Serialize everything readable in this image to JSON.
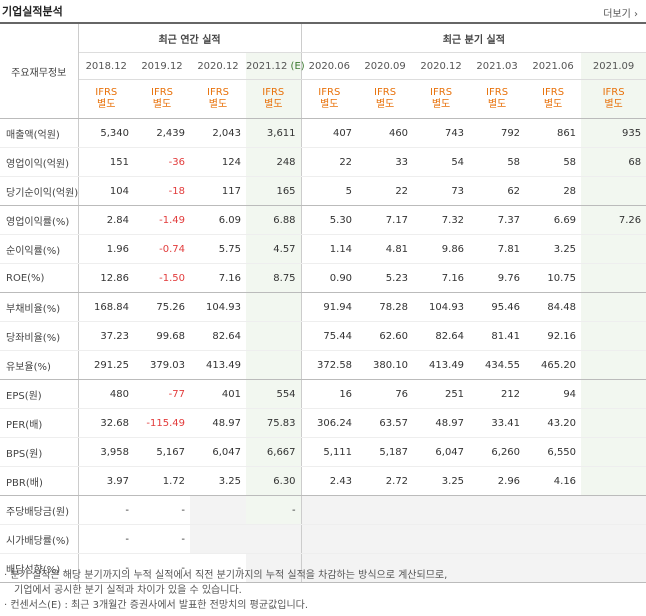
{
  "title": "기업실적분석",
  "more": "더보기",
  "header": {
    "corner": "주요재무정보",
    "annual_group": "최근 연간 실적",
    "quarter_group": "최근 분기 실적",
    "annual_cols": [
      "2018.12",
      "2019.12",
      "2020.12",
      "2021.12"
    ],
    "estimate_mark": "(E)",
    "quarter_cols": [
      "2020.06",
      "2020.09",
      "2020.12",
      "2021.03",
      "2021.06",
      "2021.09"
    ],
    "ifrs_line1": "IFRS",
    "ifrs_line2": "별도"
  },
  "rows": [
    {
      "label": "매출액(억원)",
      "values": [
        "5,340",
        "2,439",
        "2,043",
        "3,611",
        "407",
        "460",
        "743",
        "792",
        "861",
        "935"
      ]
    },
    {
      "label": "영업이익(억원)",
      "values": [
        "151",
        "-36",
        "124",
        "248",
        "22",
        "33",
        "54",
        "58",
        "58",
        "68"
      ]
    },
    {
      "label": "당기순이익(억원)",
      "values": [
        "104",
        "-18",
        "117",
        "165",
        "5",
        "22",
        "73",
        "62",
        "28",
        ""
      ]
    },
    {
      "label": "영업이익률(%)",
      "values": [
        "2.84",
        "-1.49",
        "6.09",
        "6.88",
        "5.30",
        "7.17",
        "7.32",
        "7.37",
        "6.69",
        "7.26"
      ]
    },
    {
      "label": "순이익률(%)",
      "values": [
        "1.96",
        "-0.74",
        "5.75",
        "4.57",
        "1.14",
        "4.81",
        "9.86",
        "7.81",
        "3.25",
        ""
      ]
    },
    {
      "label": "ROE(%)",
      "values": [
        "12.86",
        "-1.50",
        "7.16",
        "8.75",
        "0.90",
        "5.23",
        "7.16",
        "9.76",
        "10.75",
        ""
      ]
    },
    {
      "label": "부채비율(%)",
      "values": [
        "168.84",
        "75.26",
        "104.93",
        "",
        "91.94",
        "78.28",
        "104.93",
        "95.46",
        "84.48",
        ""
      ]
    },
    {
      "label": "당좌비율(%)",
      "values": [
        "37.23",
        "99.68",
        "82.64",
        "",
        "75.44",
        "62.60",
        "82.64",
        "81.41",
        "92.16",
        ""
      ]
    },
    {
      "label": "유보율(%)",
      "values": [
        "291.25",
        "379.03",
        "413.49",
        "",
        "372.58",
        "380.10",
        "413.49",
        "434.55",
        "465.20",
        ""
      ]
    },
    {
      "label": "EPS(원)",
      "values": [
        "480",
        "-77",
        "401",
        "554",
        "16",
        "76",
        "251",
        "212",
        "94",
        ""
      ]
    },
    {
      "label": "PER(배)",
      "values": [
        "32.68",
        "-115.49",
        "48.97",
        "75.83",
        "306.24",
        "63.57",
        "48.97",
        "33.41",
        "43.20",
        ""
      ]
    },
    {
      "label": "BPS(원)",
      "values": [
        "3,958",
        "5,167",
        "6,047",
        "6,667",
        "5,111",
        "5,187",
        "6,047",
        "6,260",
        "6,550",
        ""
      ]
    },
    {
      "label": "PBR(배)",
      "values": [
        "3.97",
        "1.72",
        "3.25",
        "6.30",
        "2.43",
        "2.72",
        "3.25",
        "2.96",
        "4.16",
        ""
      ]
    },
    {
      "label": "주당배당금(원)",
      "values": [
        "-",
        "-",
        "",
        "-",
        "",
        "",
        "",
        "",
        "",
        ""
      ]
    },
    {
      "label": "시가배당률(%)",
      "values": [
        "-",
        "-",
        "",
        "",
        "",
        "",
        "",
        "",
        "",
        ""
      ]
    },
    {
      "label": "배당성향(%)",
      "values": [
        "-",
        "-",
        "-",
        "",
        "",
        "",
        "",
        "",
        "",
        ""
      ]
    }
  ],
  "notes": [
    "· 분기 실적은 해당 분기까지의 누적 실적에서 직전 분기까지의 누적 실적을 차감하는 방식으로 계산되므로,",
    "  기업에서 공시한 분기 실적과 차이가 있을 수 있습니다.",
    "· 컨센서스(E) : 최근 3개월간 증권사에서 발표한 전망치의 평균값입니다."
  ],
  "colors": {
    "accent": "#e8720c",
    "negative": "#e23c3c",
    "estimate": "#3a7a2f",
    "shade": "#f2f7f0"
  }
}
